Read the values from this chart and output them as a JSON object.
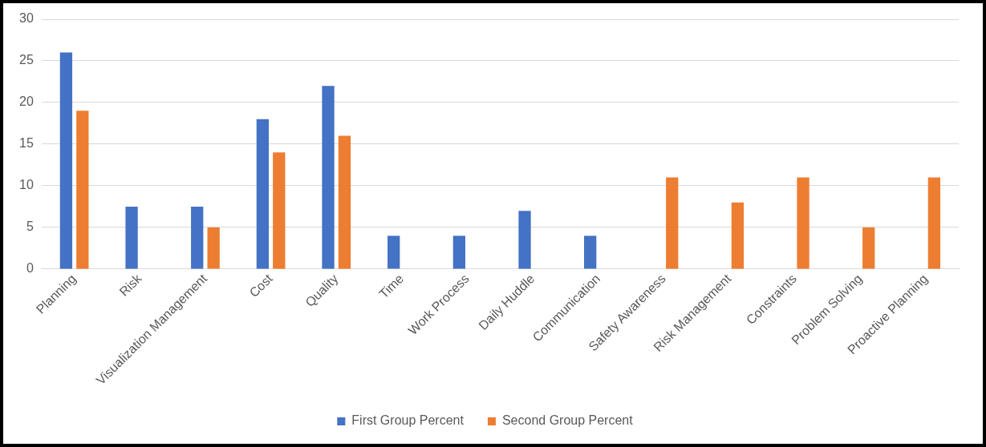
{
  "chart_data": {
    "type": "bar",
    "categories": [
      "Planning",
      "Risk",
      "Visualization Management",
      "Cost",
      "Quality",
      "Time",
      "Work Process",
      "Daily Huddle",
      "Communication",
      "Safety Awareness",
      "Risk Management",
      "Constraints",
      "Problem Solving",
      "Proactive Planning"
    ],
    "series": [
      {
        "name": "First Group Percent",
        "color": "#4472c4",
        "values": [
          26,
          7.5,
          7.5,
          18,
          22,
          4,
          4,
          7,
          4,
          null,
          null,
          null,
          null,
          null
        ]
      },
      {
        "name": "Second Group Percent",
        "color": "#ed7d31",
        "values": [
          19,
          null,
          5,
          14,
          16,
          null,
          null,
          null,
          null,
          11,
          8,
          11,
          5,
          11
        ]
      }
    ],
    "ylim": [
      0,
      30
    ],
    "yticks": [
      0,
      5,
      10,
      15,
      20,
      25,
      30
    ],
    "grid": "y",
    "legend": "bottom"
  }
}
